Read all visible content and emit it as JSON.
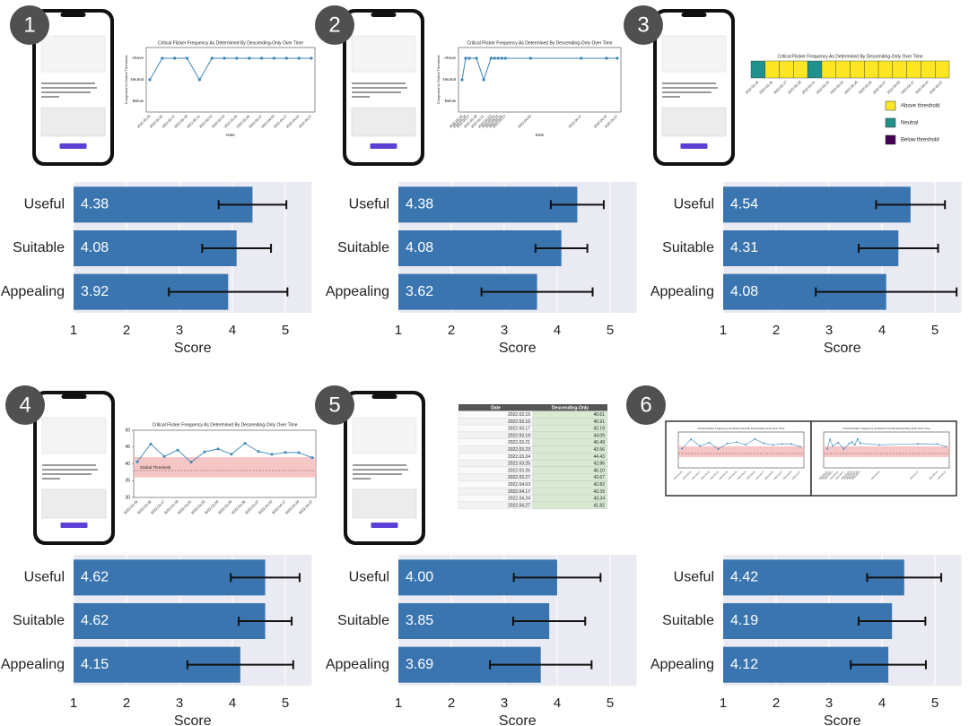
{
  "badges": [
    "1",
    "2",
    "3",
    "4",
    "5",
    "6"
  ],
  "session": {
    "title": "Critical Flicker Frequency As Determined By Descending-Only Over Time",
    "x_label": "Date",
    "y_label": "Compared to Global Threshold",
    "dates": [
      "2022.03.15",
      "2022.03.16",
      "2022.03.17",
      "2022.03.19",
      "2022.03.21",
      "2022.03.23",
      "2022.03.24",
      "2022.03.25",
      "2022.03.26",
      "2022.03.27",
      "2022.04.03",
      "2022.04.17",
      "2022.04.24",
      "2022.04.27"
    ],
    "level_names": [
      "Above",
      "Neutral",
      "Below"
    ],
    "levels": [
      "Neutral",
      "Above",
      "Above",
      "Above",
      "Neutral",
      "Above",
      "Above",
      "Above",
      "Above",
      "Above",
      "Above",
      "Above",
      "Above",
      "Above"
    ],
    "legend": [
      {
        "name": "Above threshold",
        "color": "#fde725"
      },
      {
        "name": "Neutral",
        "color": "#21918c"
      },
      {
        "name": "Below threshold",
        "color": "#440154"
      }
    ],
    "line_color": "#3b86b8",
    "values": [
      40.61,
      45.91,
      42.19,
      44.09,
      40.49,
      43.56,
      44.43,
      42.86,
      46.1,
      43.67,
      42.82,
      43.39,
      43.34,
      41.82
    ],
    "ylim": [
      30,
      50
    ],
    "yticks": [
      30,
      35,
      40,
      45,
      50
    ],
    "threshold": 38,
    "threshold_band": [
      36,
      42
    ],
    "threshold_label": "Global Threshold",
    "table_header": [
      "Date",
      "Descending-Only"
    ],
    "table_values": [
      "40.61",
      "45.91",
      "42.19",
      "44.09",
      "40.49",
      "43.56",
      "44.43",
      "42.86",
      "46.10",
      "43.67",
      "42.82",
      "43.39",
      "43.34",
      "41.82"
    ]
  },
  "chart_data": [
    {
      "type": "hbar",
      "categories": [
        "Useful",
        "Suitable",
        "Appealing"
      ],
      "values": [
        4.38,
        4.08,
        3.92
      ],
      "errors": [
        0.64,
        0.65,
        1.12
      ],
      "xlim": [
        1,
        5.5
      ],
      "xticks": [
        1,
        2,
        3,
        4,
        5
      ],
      "x_label": "Score",
      "color": "#3a75af",
      "grid": true
    },
    {
      "type": "hbar",
      "categories": [
        "Useful",
        "Suitable",
        "Appealing"
      ],
      "values": [
        4.38,
        4.08,
        3.62
      ],
      "errors": [
        0.5,
        0.49,
        1.05
      ],
      "xlim": [
        1,
        5.5
      ],
      "xticks": [
        1,
        2,
        3,
        4,
        5
      ],
      "x_label": "Score",
      "color": "#3a75af",
      "grid": true
    },
    {
      "type": "hbar",
      "categories": [
        "Useful",
        "Suitable",
        "Appealing"
      ],
      "values": [
        4.54,
        4.31,
        4.08
      ],
      "errors": [
        0.65,
        0.75,
        1.33
      ],
      "xlim": [
        1,
        5.5
      ],
      "xticks": [
        1,
        2,
        3,
        4,
        5
      ],
      "x_label": "Score",
      "color": "#3a75af",
      "grid": true
    },
    {
      "type": "hbar",
      "categories": [
        "Useful",
        "Suitable",
        "Appealing"
      ],
      "values": [
        4.62,
        4.62,
        4.15
      ],
      "errors": [
        0.65,
        0.5,
        1.0
      ],
      "xlim": [
        1,
        5.5
      ],
      "xticks": [
        1,
        2,
        3,
        4,
        5
      ],
      "x_label": "Score",
      "color": "#3a75af",
      "grid": true
    },
    {
      "type": "hbar",
      "categories": [
        "Useful",
        "Suitable",
        "Appealing"
      ],
      "values": [
        4.0,
        3.85,
        3.69
      ],
      "value_labels": [
        "4.00",
        "3.85",
        "3.69"
      ],
      "errors": [
        0.82,
        0.68,
        0.96
      ],
      "xlim": [
        1,
        5.5
      ],
      "xticks": [
        1,
        2,
        3,
        4,
        5
      ],
      "x_label": "Score",
      "color": "#3a75af",
      "grid": true
    },
    {
      "type": "hbar",
      "categories": [
        "Useful",
        "Suitable",
        "Appealing"
      ],
      "values": [
        4.42,
        4.19,
        4.12
      ],
      "errors": [
        0.7,
        0.63,
        0.71
      ],
      "xlim": [
        1,
        5.5
      ],
      "xticks": [
        1,
        2,
        3,
        4,
        5
      ],
      "x_label": "Score",
      "color": "#3a75af",
      "grid": true
    }
  ]
}
